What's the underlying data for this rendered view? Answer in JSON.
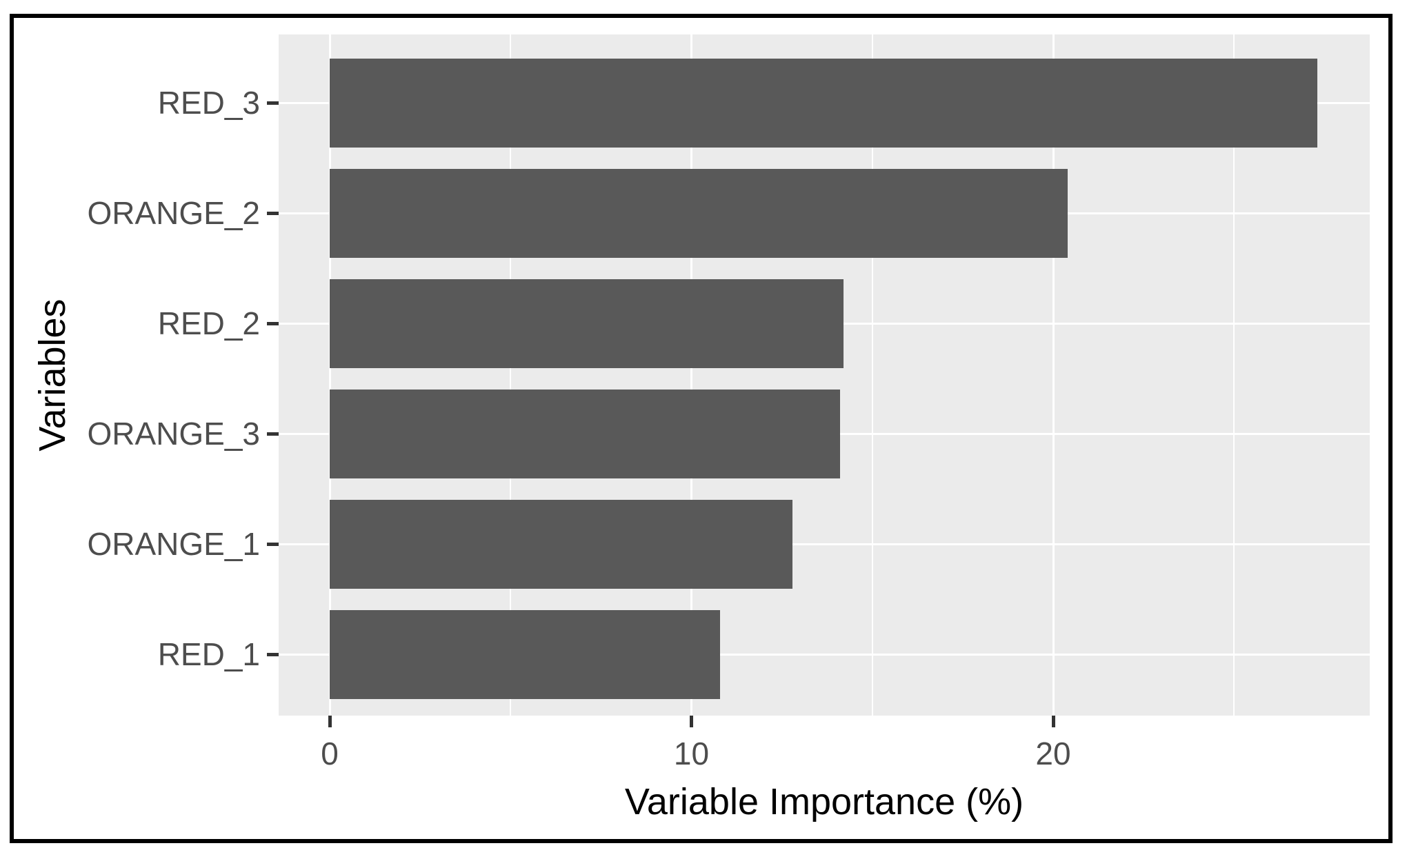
{
  "chart_data": {
    "type": "bar",
    "orientation": "horizontal",
    "title": "",
    "xlabel": "Variable Importance (%)",
    "ylabel": "Variables",
    "categories": [
      "RED_3",
      "ORANGE_2",
      "RED_2",
      "ORANGE_3",
      "ORANGE_1",
      "RED_1"
    ],
    "values": [
      27.3,
      20.4,
      14.2,
      14.1,
      12.8,
      10.8
    ],
    "x_ticks": [
      0,
      10,
      20
    ],
    "x_tick_labels": [
      "0",
      "10",
      "20"
    ],
    "x_minor_ticks": [
      5,
      15,
      25
    ],
    "xlim": [
      -1.41,
      28.75
    ],
    "grid": true,
    "legend_position": "none",
    "colors": {
      "bar_fill": "#595959",
      "panel_background": "#EBEBEB",
      "gridline": "#FFFFFF",
      "axis_text": "#4D4D4D",
      "axis_title": "#000000",
      "tick_mark": "#333333",
      "frame_border": "#000000",
      "page_background": "#FFFFFF"
    }
  }
}
